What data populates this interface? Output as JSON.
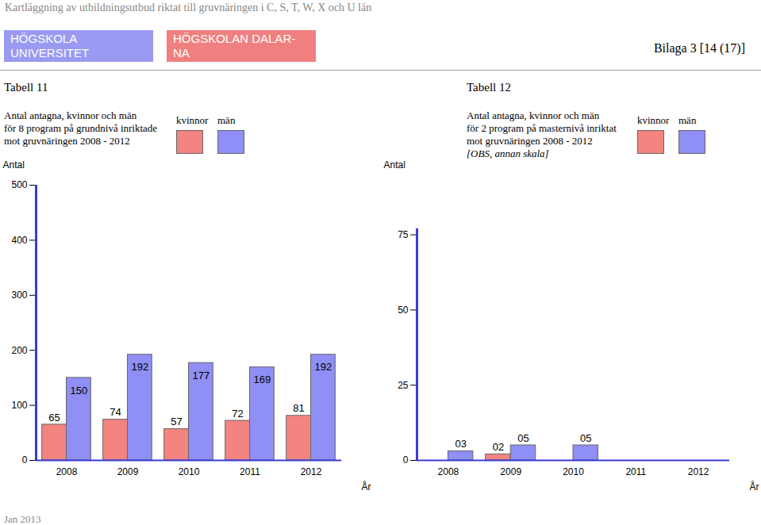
{
  "page": {
    "header": "Kartläggning av utbildningsutbud riktat till gruvnäringen i C, S, T, W, X och U län",
    "logos": [
      [
        "HÖGSKOLA",
        "UNIVERSITET"
      ],
      [
        "HÖGSKOLAN DALAR-",
        "NA"
      ]
    ],
    "appendix": "Bilaga 3 [14 (17)]",
    "footer": "Jan 2013"
  },
  "chart_data": [
    {
      "type": "bar",
      "title": "Tabell 11",
      "subtitle": [
        "Antal antagna, kvinnor och män",
        "för 8 program på grundnivå inriktade",
        "mot gruvnäringen 2008 - 2012"
      ],
      "y_label": "Antal",
      "x_label": "År",
      "categories": [
        "2008",
        "2009",
        "2010",
        "2011",
        "2012"
      ],
      "series": [
        {
          "name": "kvinnor",
          "color": "#f4847f",
          "values": [
            65,
            74,
            57,
            72,
            81
          ]
        },
        {
          "name": "män",
          "color": "#8f8ff5",
          "values": [
            150,
            192,
            177,
            169,
            192
          ]
        }
      ],
      "ylim": [
        0,
        500
      ],
      "yticks": [
        0,
        100,
        200,
        300,
        400,
        500
      ],
      "data_labels": true,
      "legend": "top"
    },
    {
      "type": "bar",
      "title": "Tabell 12",
      "subtitle": [
        "Antal antagna, kvinnor och män",
        "för 2 program på masternivå inriktat",
        "mot gruvnäringen 2008 - 2012"
      ],
      "note": "[OBS, annan skala]",
      "y_label": "Antal",
      "x_label": "År",
      "categories": [
        "2008",
        "2009",
        "2010",
        "2011",
        "2012"
      ],
      "series": [
        {
          "name": "kvinnor",
          "color": "#f4847f",
          "values": [
            null,
            2,
            null,
            null,
            null
          ],
          "value_labels": [
            null,
            "02",
            null,
            null,
            null
          ]
        },
        {
          "name": "män",
          "color": "#8f8ff5",
          "values": [
            3,
            5,
            5,
            null,
            null
          ],
          "value_labels": [
            "03",
            "05",
            "05",
            null,
            null
          ]
        }
      ],
      "ylim": [
        0,
        77
      ],
      "yticks": [
        0,
        25,
        50,
        75
      ],
      "data_labels": true,
      "legend": "top"
    }
  ]
}
